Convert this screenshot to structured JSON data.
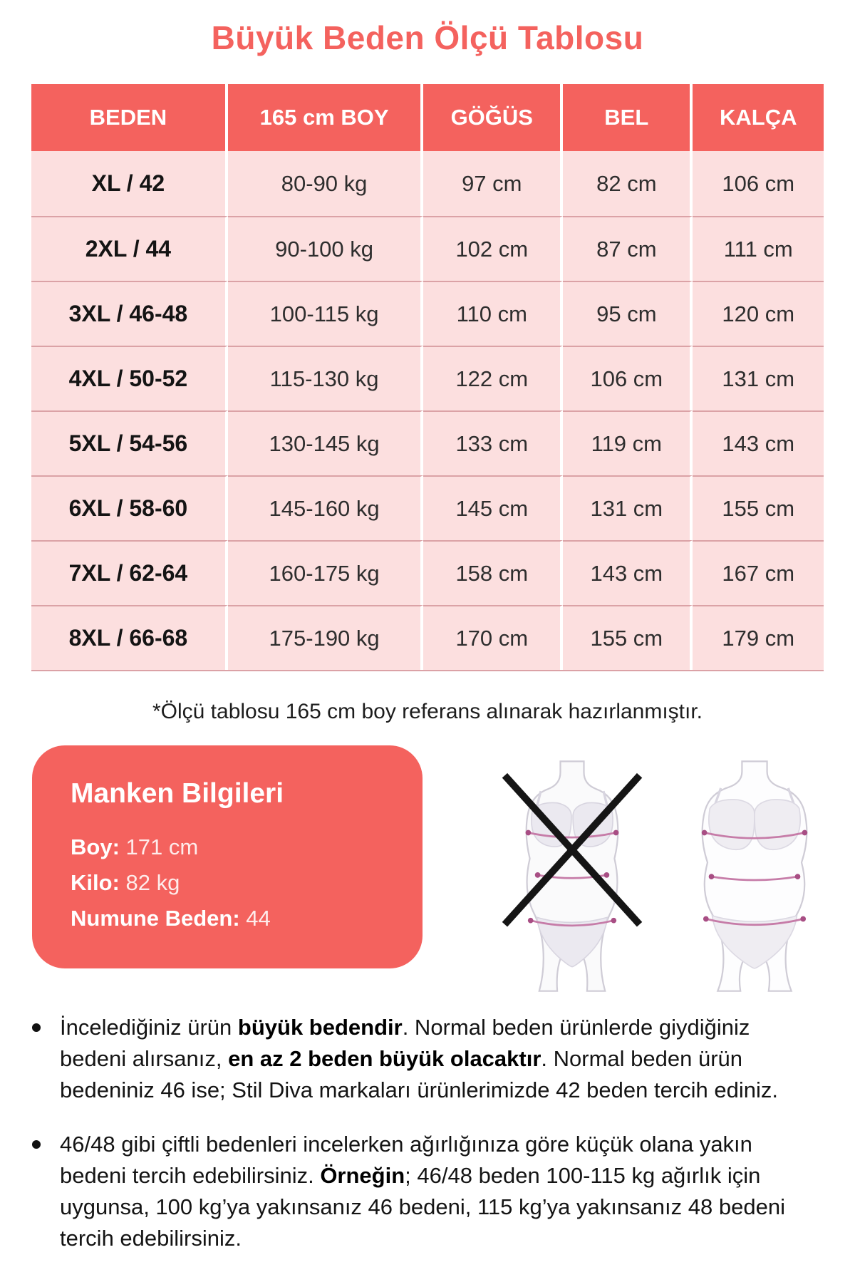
{
  "title": "Büyük Beden Ölçü Tablosu",
  "table": {
    "headers": [
      "BEDEN",
      "165 cm BOY",
      "GÖĞÜS",
      "BEL",
      "KALÇA"
    ],
    "rows": [
      [
        "XL / 42",
        "80-90 kg",
        "97 cm",
        "82 cm",
        "106 cm"
      ],
      [
        "2XL / 44",
        "90-100 kg",
        "102 cm",
        "87 cm",
        "111 cm"
      ],
      [
        "3XL / 46-48",
        "100-115 kg",
        "110 cm",
        "95 cm",
        "120 cm"
      ],
      [
        "4XL / 50-52",
        "115-130 kg",
        "122 cm",
        "106 cm",
        "131 cm"
      ],
      [
        "5XL / 54-56",
        "130-145 kg",
        "133 cm",
        "119 cm",
        "143 cm"
      ],
      [
        "6XL / 58-60",
        "145-160 kg",
        "145 cm",
        "131 cm",
        "155 cm"
      ],
      [
        "7XL / 62-64",
        "160-175 kg",
        "158 cm",
        "143 cm",
        "167 cm"
      ],
      [
        "8XL / 66-68",
        "175-190 kg",
        "170 cm",
        "155 cm",
        "179 cm"
      ]
    ]
  },
  "note": "*Ölçü tablosu 165 cm boy referans alınarak hazırlanmıştır.",
  "model_info": {
    "title": "Manken Bilgileri",
    "fields": [
      {
        "label": "Boy",
        "value": "171 cm"
      },
      {
        "label": "Kilo",
        "value": "82 kg"
      },
      {
        "label": "Numune Beden",
        "value": "44"
      }
    ]
  },
  "figures": {
    "wrong_figure": "slim-body-crossed-out",
    "correct_figure": "plus-size-body-with-measurement-lines"
  },
  "bullets": [
    {
      "segments": [
        {
          "text": "İncelediğiniz ürün ",
          "bold": false
        },
        {
          "text": "büyük bedendir",
          "bold": true
        },
        {
          "text": ". Normal beden ürünlerde giydiğiniz bedeni alırsanız, ",
          "bold": false
        },
        {
          "text": "en az 2 beden büyük olacaktır",
          "bold": true
        },
        {
          "text": ". Normal beden ürün bedeniniz 46 ise; Stil Diva markaları ürünlerimizde 42 beden tercih ediniz.",
          "bold": false
        }
      ]
    },
    {
      "segments": [
        {
          "text": "46/48 gibi çiftli bedenleri incelerken ağırlığınıza göre küçük olana yakın bedeni tercih edebilirsiniz. ",
          "bold": false
        },
        {
          "text": "Örneğin",
          "bold": true
        },
        {
          "text": "; 46/48 beden 100-115 kg ağırlık için uygunsa, 100 kg’ya yakınsanız 46 bedeni, 115 kg’ya yakınsanız 48 bedeni tercih edebilirsiniz.",
          "bold": false
        }
      ]
    }
  ],
  "colors": {
    "accent": "#f4625e",
    "row_bg": "#fcdfdf",
    "row_border": "#dba2a6",
    "text_dark": "#232323",
    "measure_line": "#c67ca8",
    "measure_dot": "#a84e84"
  }
}
